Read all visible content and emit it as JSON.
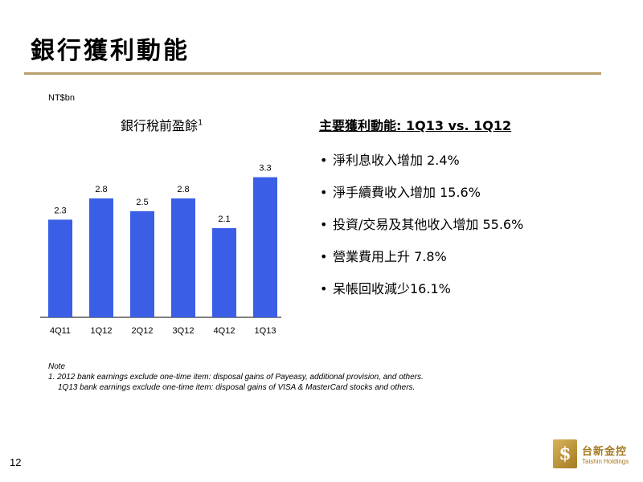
{
  "slide": {
    "title": "銀行獲利動能",
    "unit": "NT$bn",
    "chart_title": "銀行稅前盈餘",
    "chart_title_sup": "1",
    "right_title": "主要獲利動能: 1Q13 vs. 1Q12",
    "bullets": [
      "淨利息收入增加 2.4%",
      "淨手續費收入增加 15.6%",
      "投資/交易及其他收入增加 55.6%",
      "營業費用上升 7.8%",
      "呆帳回收減少16.1%"
    ],
    "note_heading": "Note",
    "note_line1": "1. 2012 bank earnings exclude one-time item: disposal gains of Payeasy, additional provision, and others.",
    "note_line2": "1Q13 bank earnings exclude one-time item: disposal gains of VISA & MasterCard stocks and others.",
    "page_number": "12",
    "logo_text": "台新金控",
    "logo_en": "Taishin Holdings"
  },
  "colors": {
    "bar": "#3a5fe6",
    "rule": "#b8a06a"
  },
  "chart_data": {
    "type": "bar",
    "title": "銀行稅前盈餘",
    "ylabel": "NT$bn",
    "categories": [
      "4Q11",
      "1Q12",
      "2Q12",
      "3Q12",
      "4Q12",
      "1Q13"
    ],
    "values": [
      2.3,
      2.8,
      2.5,
      2.8,
      2.1,
      3.3
    ],
    "ylim": [
      0,
      3.5
    ],
    "grid": false,
    "legend": "none"
  }
}
